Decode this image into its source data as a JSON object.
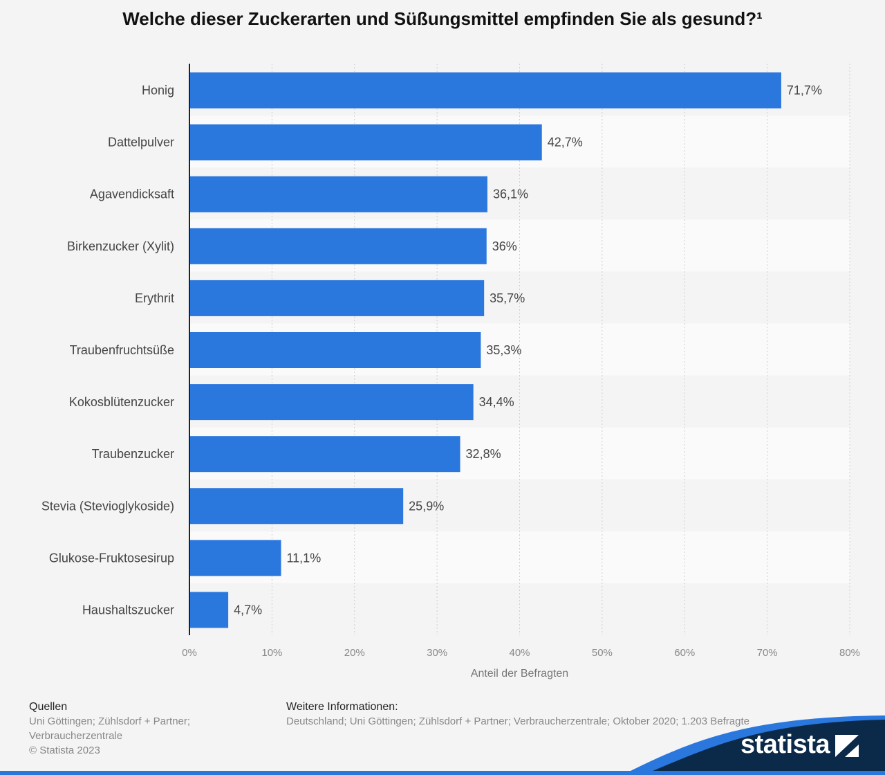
{
  "title": "Welche dieser Zuckerarten und Süßungsmittel empfinden Sie als gesund?¹",
  "chart_data": {
    "type": "bar",
    "orientation": "horizontal",
    "categories": [
      "Honig",
      "Dattelpulver",
      "Agavendicksaft",
      "Birkenzucker (Xylit)",
      "Erythrit",
      "Traubenfruchtsüße",
      "Kokosblütenzucker",
      "Traubenzucker",
      "Stevia (Stevioglykoside)",
      "Glukose-Fruktosesirup",
      "Haushaltszucker"
    ],
    "values": [
      71.7,
      42.7,
      36.1,
      36,
      35.7,
      35.3,
      34.4,
      32.8,
      25.9,
      11.1,
      4.7
    ],
    "value_labels": [
      "71,7%",
      "42,7%",
      "36,1%",
      "36%",
      "35,7%",
      "35,3%",
      "34,4%",
      "32,8%",
      "25,9%",
      "11,1%",
      "4,7%"
    ],
    "xlim": [
      0,
      80
    ],
    "x_ticks": [
      0,
      10,
      20,
      30,
      40,
      50,
      60,
      70,
      80
    ],
    "x_tick_labels": [
      "0%",
      "10%",
      "20%",
      "30%",
      "40%",
      "50%",
      "60%",
      "70%",
      "80%"
    ],
    "xlabel": "Anteil der Befragten",
    "ylabel": "",
    "grid": true,
    "colors": {
      "bar": "#2a77de",
      "background": "#f4f4f4",
      "band": "#fafafa"
    }
  },
  "footer": {
    "sources_heading": "Quellen",
    "sources_line1": "Uni Göttingen; Zühlsdorf + Partner;",
    "sources_line2": "Verbraucherzentrale",
    "copyright": "© Statista 2023",
    "info_heading": "Weitere Informationen:",
    "info_text": "Deutschland; Uni Göttingen; Zühlsdorf + Partner; Verbraucherzentrale; Oktober 2020; 1.203 Befragte"
  },
  "logo": {
    "text": "statista",
    "color": "#0b2a4a",
    "accent": "#2a77de"
  }
}
